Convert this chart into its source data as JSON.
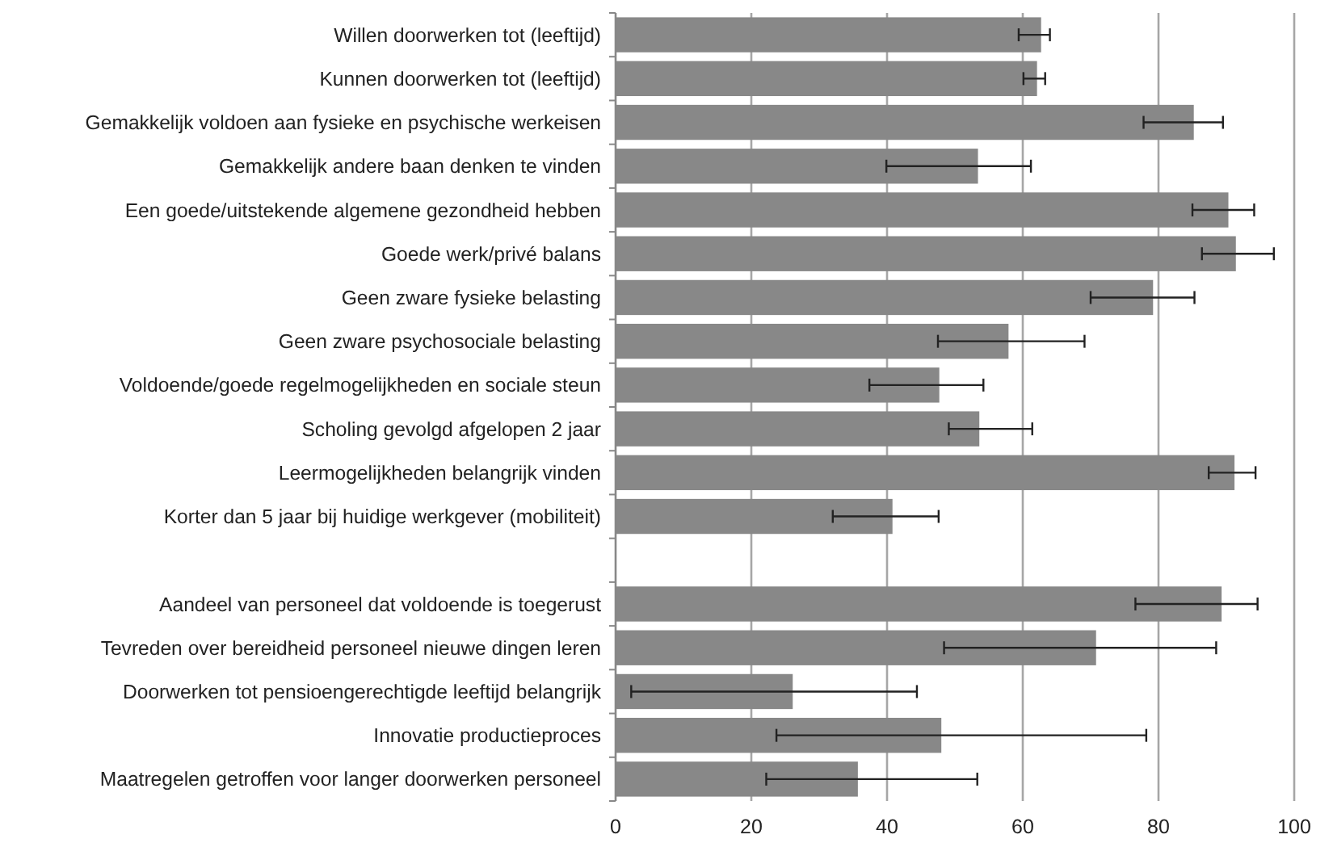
{
  "chart_data": {
    "type": "bar",
    "orientation": "horizontal",
    "categories": [
      "Willen doorwerken tot (leeftijd)",
      "Kunnen doorwerken tot (leeftijd)",
      "Gemakkelijk voldoen aan fysieke en psychische werkeisen",
      "Gemakkelijk andere baan denken te vinden",
      "Een goede/uitstekende algemene gezondheid hebben",
      "Goede werk/privé balans",
      "Geen zware fysieke belasting",
      "Geen zware psychosociale belasting",
      "Voldoende/goede regelmogelijkheden en sociale steun",
      "Scholing gevolgd afgelopen 2 jaar",
      "Leermogelijkheden belangrijk vinden",
      "Korter dan 5 jaar bij huidige werkgever (mobiliteit)",
      null,
      "Aandeel van personeel dat voldoende is toegerust",
      "Tevreden over bereidheid personeel nieuwe dingen leren",
      "Doorwerken tot pensioengerechtigde leeftijd belangrijk",
      "Innovatie productieproces",
      "Maatregelen getroffen voor langer doorwerken personeel"
    ],
    "values": [
      62.7,
      62.1,
      85.2,
      53.4,
      90.3,
      91.4,
      79.2,
      57.9,
      47.7,
      53.6,
      91.2,
      40.8,
      null,
      89.3,
      70.8,
      26.1,
      48,
      35.7
    ],
    "errors": [
      [
        59.4,
        64
      ],
      [
        60.1,
        63.3
      ],
      [
        77.8,
        89.5
      ],
      [
        39.9,
        61.2
      ],
      [
        85,
        94.1
      ],
      [
        86.4,
        97
      ],
      [
        70,
        85.3
      ],
      [
        47.5,
        69.1
      ],
      [
        37.4,
        54.2
      ],
      [
        49.1,
        61.4
      ],
      [
        87.4,
        94.3
      ],
      [
        32,
        47.6
      ],
      null,
      [
        76.6,
        94.6
      ],
      [
        48.4,
        88.5
      ],
      [
        2.3,
        44.4
      ],
      [
        23.7,
        78.2
      ],
      [
        22.2,
        53.3
      ]
    ],
    "color": "#888888",
    "xlim": [
      0,
      100
    ],
    "xticks": [
      0,
      20,
      40,
      60,
      80,
      100
    ],
    "grid": "x"
  }
}
